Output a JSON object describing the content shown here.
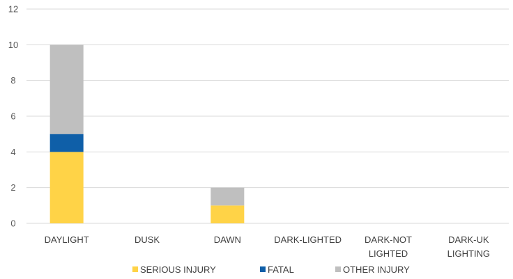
{
  "chart_data": {
    "type": "bar",
    "stacked": true,
    "title": "",
    "xlabel": "",
    "ylabel": "",
    "ylim": [
      0,
      12
    ],
    "yticks": [
      "0",
      "2",
      "4",
      "6",
      "8",
      "10",
      "12"
    ],
    "grid": true,
    "legend_position": "bottom",
    "categories": [
      [
        "DAYLIGHT"
      ],
      [
        "DUSK"
      ],
      [
        "DAWN"
      ],
      [
        "DARK-LIGHTED"
      ],
      [
        "DARK-NOT",
        "LIGHTED"
      ],
      [
        "DARK-UK",
        "LIGHTING"
      ]
    ],
    "series": [
      {
        "name": "SERIOUS INJURY",
        "color": "#ffd347",
        "values": [
          4,
          0,
          1,
          0,
          0,
          0
        ]
      },
      {
        "name": "FATAL",
        "color": "#0f5fa8",
        "values": [
          1,
          0,
          0,
          0,
          0,
          0
        ]
      },
      {
        "name": "OTHER INJURY",
        "color": "#bfbfbf",
        "values": [
          5,
          0,
          1,
          0,
          0,
          0
        ]
      }
    ]
  }
}
